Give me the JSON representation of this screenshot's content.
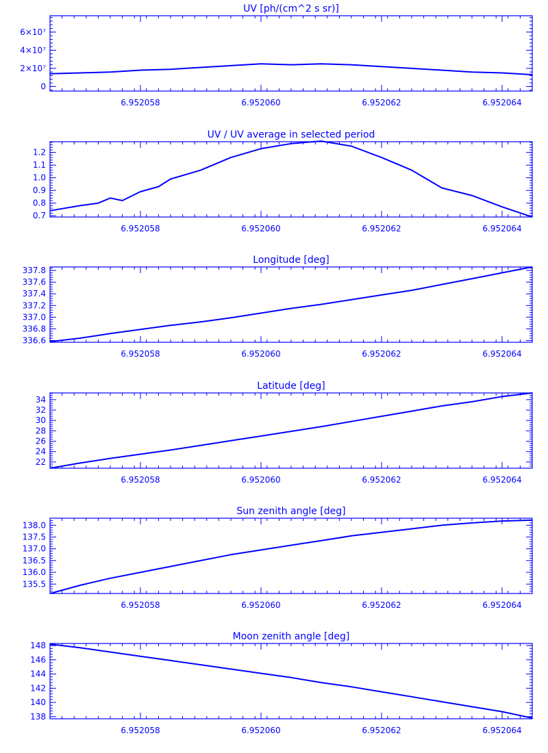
{
  "colors": {
    "line": "#0000ff",
    "axes": "#0000ff",
    "background": "#ffffff"
  },
  "chart_data": [
    {
      "type": "line",
      "title": "UV [ph/(cm^2 s sr)]",
      "xlim": [
        6.9520565,
        6.9520645
      ],
      "ylim": [
        -5000000,
        78000000
      ],
      "x_tick_labels": [
        "6.952058",
        "6.952060",
        "6.952062",
        "6.952064"
      ],
      "x_tick_values": [
        6.952058,
        6.95206,
        6.952062,
        6.952064
      ],
      "y_tick_labels": [
        "0",
        "2×10⁷",
        "4×10⁷",
        "6×10⁷"
      ],
      "y_tick_values": [
        0,
        20000000,
        40000000,
        60000000
      ],
      "x": [
        6.9520565,
        6.952057,
        6.9520575,
        6.952058,
        6.9520585,
        6.952059,
        6.9520595,
        6.95206,
        6.9520605,
        6.952061,
        6.9520615,
        6.952062,
        6.9520625,
        6.952063,
        6.9520635,
        6.952064,
        6.9520645
      ],
      "y": [
        14000000,
        15000000,
        16000000,
        18000000,
        19000000,
        21000000,
        23000000,
        25000000,
        24000000,
        25000000,
        24000000,
        22000000,
        20000000,
        18000000,
        16000000,
        15000000,
        13000000
      ]
    },
    {
      "type": "line",
      "title": "UV / UV average in selected period",
      "xlim": [
        6.9520565,
        6.9520645
      ],
      "ylim": [
        0.69,
        1.285
      ],
      "x_tick_labels": [
        "6.952058",
        "6.952060",
        "6.952062",
        "6.952064"
      ],
      "x_tick_values": [
        6.952058,
        6.95206,
        6.952062,
        6.952064
      ],
      "y_tick_labels": [
        "0.7",
        "0.8",
        "0.9",
        "1.0",
        "1.1",
        "1.2"
      ],
      "y_tick_values": [
        0.7,
        0.8,
        0.9,
        1.0,
        1.1,
        1.2
      ],
      "x": [
        6.9520565,
        6.952057,
        6.9520573,
        6.9520575,
        6.9520577,
        6.952058,
        6.9520583,
        6.9520585,
        6.952059,
        6.9520595,
        6.95206,
        6.9520605,
        6.952061,
        6.9520615,
        6.952062,
        6.9520625,
        6.952063,
        6.9520635,
        6.952064,
        6.9520645
      ],
      "y": [
        0.74,
        0.78,
        0.8,
        0.84,
        0.82,
        0.89,
        0.93,
        0.99,
        1.06,
        1.16,
        1.23,
        1.27,
        1.29,
        1.25,
        1.16,
        1.06,
        0.92,
        0.86,
        0.77,
        0.69
      ]
    },
    {
      "type": "line",
      "title": "Longitude [deg]",
      "xlim": [
        6.9520565,
        6.9520645
      ],
      "ylim": [
        336.57,
        337.86
      ],
      "x_tick_labels": [
        "6.952058",
        "6.952060",
        "6.952062",
        "6.952064"
      ],
      "x_tick_values": [
        6.952058,
        6.95206,
        6.952062,
        6.952064
      ],
      "y_tick_labels": [
        "336.6",
        "336.8",
        "337.0",
        "337.2",
        "337.4",
        "337.6",
        "337.8"
      ],
      "y_tick_values": [
        336.6,
        336.8,
        337.0,
        337.2,
        337.4,
        337.6,
        337.8
      ],
      "x": [
        6.9520565,
        6.952057,
        6.9520575,
        6.952058,
        6.9520585,
        6.952059,
        6.9520595,
        6.95206,
        6.9520605,
        6.952061,
        6.9520615,
        6.952062,
        6.9520625,
        6.952063,
        6.9520635,
        6.952064,
        6.9520645
      ],
      "y": [
        336.58,
        336.64,
        336.72,
        336.79,
        336.86,
        336.92,
        336.99,
        337.07,
        337.15,
        337.22,
        337.3,
        337.38,
        337.46,
        337.56,
        337.66,
        337.76,
        337.86
      ]
    },
    {
      "type": "line",
      "title": "Latitude [deg]",
      "xlim": [
        6.9520565,
        6.9520645
      ],
      "ylim": [
        20.8,
        35.3
      ],
      "x_tick_labels": [
        "6.952058",
        "6.952060",
        "6.952062",
        "6.952064"
      ],
      "x_tick_values": [
        6.952058,
        6.95206,
        6.952062,
        6.952064
      ],
      "y_tick_labels": [
        "22",
        "24",
        "26",
        "28",
        "30",
        "32",
        "34"
      ],
      "y_tick_values": [
        22,
        24,
        26,
        28,
        30,
        32,
        34
      ],
      "x": [
        6.9520565,
        6.952057,
        6.9520575,
        6.952058,
        6.9520585,
        6.952059,
        6.9520595,
        6.95206,
        6.9520605,
        6.952061,
        6.9520615,
        6.952062,
        6.9520625,
        6.952063,
        6.9520635,
        6.952064,
        6.9520645
      ],
      "y": [
        20.8,
        21.8,
        22.7,
        23.5,
        24.3,
        25.2,
        26.1,
        27.0,
        27.9,
        28.8,
        29.8,
        30.8,
        31.8,
        32.8,
        33.6,
        34.6,
        35.3
      ]
    },
    {
      "type": "line",
      "title": "Sun zenith angle [deg]",
      "xlim": [
        6.9520565,
        6.9520645
      ],
      "ylim": [
        135.1,
        138.3
      ],
      "x_tick_labels": [
        "6.952058",
        "6.952060",
        "6.952062",
        "6.952064"
      ],
      "x_tick_values": [
        6.952058,
        6.95206,
        6.952062,
        6.952064
      ],
      "y_tick_labels": [
        "135.5",
        "136.0",
        "136.5",
        "137.0",
        "137.5",
        "138.0"
      ],
      "y_tick_values": [
        135.5,
        136.0,
        136.5,
        137.0,
        137.5,
        138.0
      ],
      "x": [
        6.9520565,
        6.952057,
        6.9520575,
        6.952058,
        6.9520585,
        6.952059,
        6.9520595,
        6.95206,
        6.9520605,
        6.952061,
        6.9520615,
        6.952062,
        6.9520625,
        6.952063,
        6.9520635,
        6.952064,
        6.9520645
      ],
      "y": [
        135.1,
        135.45,
        135.75,
        136.0,
        136.25,
        136.5,
        136.75,
        136.95,
        137.15,
        137.35,
        137.55,
        137.7,
        137.85,
        138.0,
        138.1,
        138.18,
        138.22
      ]
    },
    {
      "type": "line",
      "title": "Moon zenith angle [deg]",
      "xlim": [
        6.9520565,
        6.9520645
      ],
      "ylim": [
        137.7,
        148.3
      ],
      "x_tick_labels": [
        "6.952058",
        "6.952060",
        "6.952062",
        "6.952064"
      ],
      "x_tick_values": [
        6.952058,
        6.95206,
        6.952062,
        6.952064
      ],
      "y_tick_labels": [
        "138",
        "140",
        "142",
        "144",
        "146",
        "148"
      ],
      "y_tick_values": [
        138,
        140,
        142,
        144,
        146,
        148
      ],
      "x": [
        6.9520565,
        6.952057,
        6.9520575,
        6.952058,
        6.9520585,
        6.952059,
        6.9520595,
        6.95206,
        6.9520605,
        6.952061,
        6.9520615,
        6.952062,
        6.9520625,
        6.952063,
        6.9520635,
        6.952064,
        6.9520645
      ],
      "y": [
        148.2,
        147.7,
        147.1,
        146.5,
        145.9,
        145.3,
        144.7,
        144.1,
        143.5,
        142.8,
        142.2,
        141.5,
        140.8,
        140.1,
        139.4,
        138.7,
        137.8
      ]
    }
  ]
}
